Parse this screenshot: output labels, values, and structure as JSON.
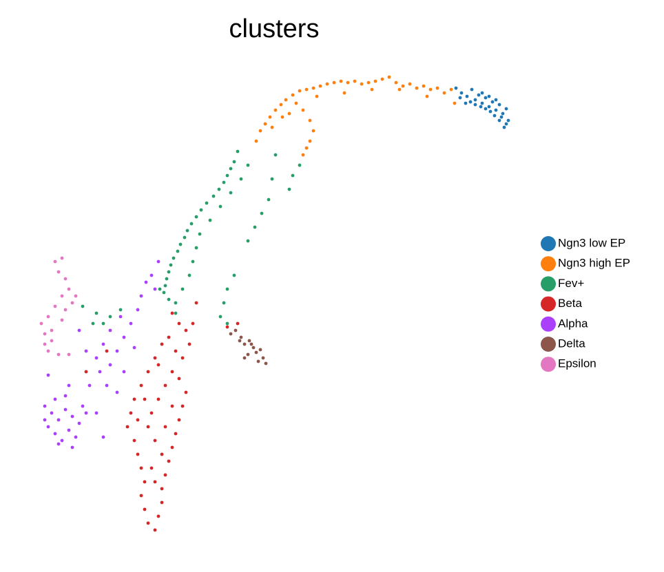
{
  "chart_data": {
    "type": "scatter",
    "title": "clusters",
    "series": [
      {
        "name": "Ngn3 low EP",
        "color": "#1f77b4",
        "x": [
          662,
          670,
          678,
          685,
          690,
          695,
          700,
          705,
          710,
          715,
          720,
          725,
          730,
          735,
          738,
          732,
          725,
          718,
          712,
          705,
          698,
          690,
          683,
          676,
          668,
          700,
          710,
          720,
          728,
          735
        ],
        "y": [
          672,
          665,
          660,
          670,
          655,
          662,
          650,
          658,
          645,
          652,
          640,
          648,
          635,
          642,
          625,
          615,
          625,
          632,
          638,
          642,
          645,
          648,
          652,
          650,
          658,
          665,
          660,
          655,
          630,
          620
        ]
      },
      {
        "name": "Ngn3 high EP",
        "color": "#ff7f0e",
        "x": [
          372,
          378,
          385,
          392,
          400,
          408,
          415,
          425,
          435,
          445,
          455,
          465,
          475,
          485,
          495,
          505,
          515,
          525,
          535,
          545,
          555,
          565,
          575,
          585,
          595,
          605,
          615,
          625,
          635,
          645,
          655,
          660,
          430,
          440,
          450,
          455,
          450,
          445,
          440,
          410,
          420,
          395,
          460,
          500,
          540,
          580,
          620
        ],
        "y": [
          595,
          610,
          620,
          630,
          640,
          648,
          655,
          662,
          668,
          670,
          672,
          675,
          678,
          680,
          682,
          680,
          682,
          678,
          680,
          682,
          685,
          688,
          680,
          675,
          678,
          672,
          675,
          670,
          672,
          665,
          670,
          650,
          650,
          640,
          625,
          610,
          595,
          585,
          575,
          630,
          635,
          615,
          660,
          665,
          670,
          670,
          660
        ]
      },
      {
        "name": "Fev+",
        "color": "#279e68",
        "x": [
          345,
          340,
          335,
          330,
          325,
          318,
          310,
          300,
          292,
          285,
          278,
          272,
          268,
          262,
          258,
          252,
          248,
          245,
          242,
          240,
          238,
          245,
          255,
          265,
          275,
          280,
          285,
          290,
          305,
          320,
          335,
          350,
          360,
          400,
          395,
          390,
          380,
          370,
          360,
          340,
          330,
          325,
          320,
          330,
          425,
          435,
          420,
          120,
          140,
          160,
          150,
          175,
          135,
          255,
          232
        ],
        "y": [
          580,
          565,
          555,
          545,
          535,
          525,
          515,
          505,
          495,
          485,
          475,
          465,
          455,
          445,
          435,
          425,
          415,
          405,
          395,
          385,
          375,
          365,
          360,
          380,
          400,
          420,
          440,
          460,
          480,
          500,
          520,
          540,
          560,
          575,
          540,
          510,
          490,
          470,
          450,
          400,
          380,
          360,
          340,
          330,
          545,
          560,
          525,
          355,
          345,
          340,
          330,
          350,
          330,
          345,
          380
        ]
      },
      {
        "name": "Beta",
        "color": "#d62728",
        "x": [
          250,
          260,
          270,
          275,
          265,
          255,
          245,
          235,
          225,
          215,
          205,
          195,
          190,
          185,
          195,
          200,
          205,
          210,
          205,
          210,
          215,
          225,
          230,
          235,
          235,
          240,
          245,
          250,
          255,
          260,
          265,
          270,
          260,
          250,
          240,
          230,
          220,
          215,
          225,
          235,
          240,
          250,
          210,
          200,
          220,
          225,
          230,
          280,
          155,
          330,
          345,
          125,
          285
        ],
        "y": [
          345,
          330,
          320,
          300,
          280,
          290,
          310,
          300,
          280,
          260,
          240,
          220,
          200,
          180,
          160,
          140,
          120,
          100,
          80,
          60,
          40,
          30,
          50,
          70,
          90,
          110,
          130,
          150,
          170,
          190,
          210,
          230,
          250,
          260,
          240,
          220,
          200,
          180,
          160,
          140,
          180,
          210,
          220,
          190,
          120,
          100,
          270,
          330,
          290,
          325,
          330,
          260,
          360
        ]
      },
      {
        "name": "Alpha",
        "color": "#aa40fc",
        "x": [
          65,
          75,
          85,
          95,
          105,
          115,
          125,
          70,
          80,
          90,
          100,
          110,
          80,
          95,
          120,
          65,
          85,
          105,
          150,
          140,
          130,
          145,
          160,
          170,
          180,
          190,
          200,
          205,
          212,
          220,
          225,
          175,
          160,
          150,
          140,
          125,
          115,
          155,
          170,
          180,
          230,
          70,
          100,
          195
        ],
        "y": [
          210,
          200,
          190,
          205,
          195,
          185,
          200,
          180,
          170,
          160,
          175,
          165,
          220,
          225,
          210,
          190,
          155,
          150,
          165,
          200,
          240,
          260,
          270,
          290,
          310,
          330,
          350,
          370,
          390,
          400,
          380,
          340,
          320,
          300,
          280,
          290,
          320,
          240,
          230,
          260,
          420,
          255,
          240,
          295
        ]
      },
      {
        "name": "Delta",
        "color": "#8c564b",
        "x": [
          335,
          342,
          350,
          355,
          362,
          368,
          372,
          378,
          382,
          386,
          375,
          360,
          355,
          365,
          348
        ],
        "y": [
          315,
          320,
          310,
          300,
          305,
          295,
          288,
          292,
          280,
          272,
          275,
          285,
          280,
          300,
          305
        ]
      },
      {
        "name": "Epsilon",
        "color": "#e377c2",
        "x": [
          80,
          90,
          85,
          95,
          100,
          90,
          105,
          80,
          70,
          60,
          65,
          75,
          70,
          85,
          100,
          90,
          75,
          95,
          110,
          65
        ],
        "y": [
          420,
          425,
          405,
          395,
          380,
          370,
          360,
          355,
          340,
          330,
          315,
          305,
          290,
          285,
          285,
          335,
          320,
          350,
          370,
          300
        ]
      }
    ]
  }
}
